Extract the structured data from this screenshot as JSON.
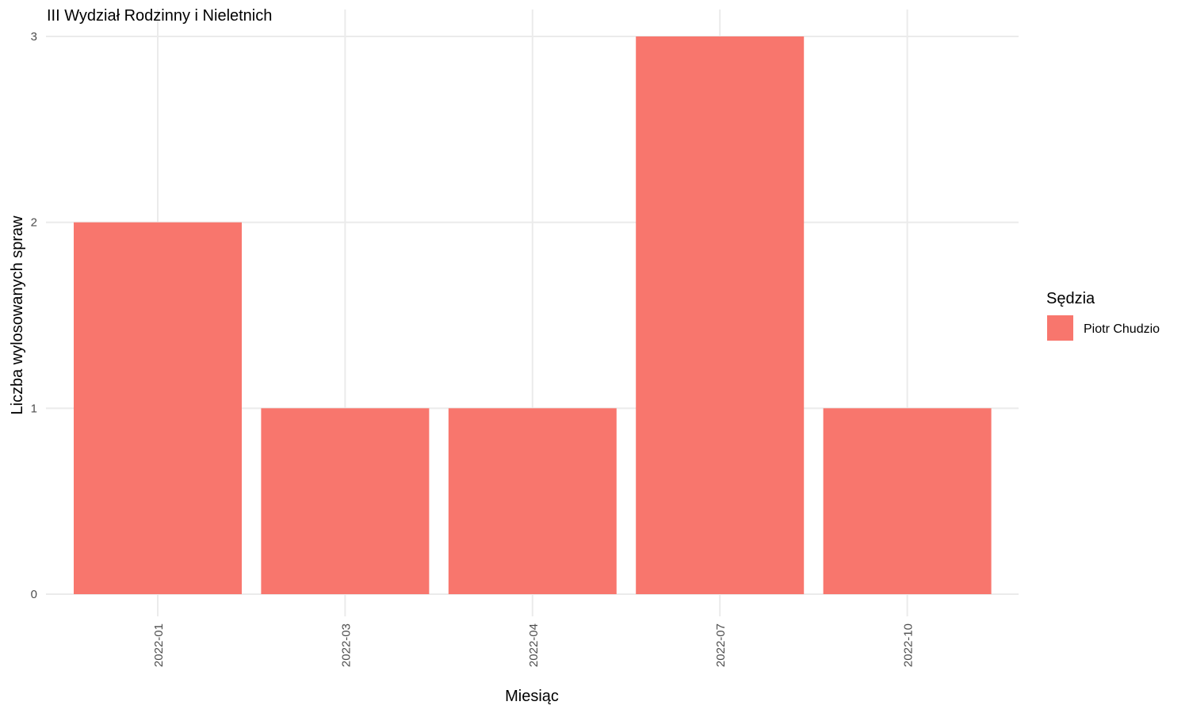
{
  "chart_data": {
    "type": "bar",
    "title": "III Wydział Rodzinny i Nieletnich",
    "xlabel": "Miesiąc",
    "ylabel": "Liczba wylosowanych spraw",
    "categories": [
      "2022-01",
      "2022-03",
      "2022-04",
      "2022-07",
      "2022-10"
    ],
    "series": [
      {
        "name": "Piotr Chudzio",
        "values": [
          2,
          1,
          1,
          3,
          1
        ],
        "color": "#F8766D"
      }
    ],
    "ylim": [
      0,
      3
    ],
    "yticks": [
      "0",
      "1",
      "2",
      "3"
    ],
    "grid": true,
    "legend": {
      "title": "Sędzia",
      "position": "right"
    }
  }
}
